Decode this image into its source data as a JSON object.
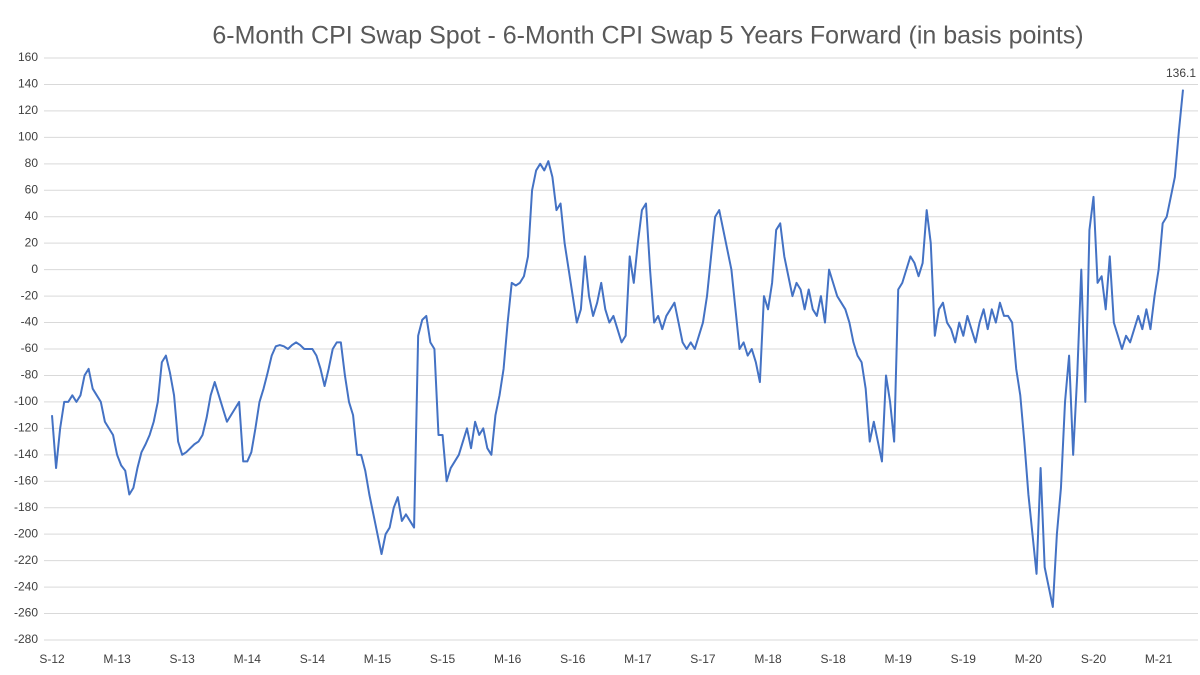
{
  "chart_data": {
    "type": "line",
    "title": "6-Month CPI Swap Spot - 6-Month CPI Swap 5 Years Forward (in basis points)",
    "color": "#4472c4",
    "grid": true,
    "ylim": [
      -280,
      160
    ],
    "yticks": [
      -280,
      -260,
      -240,
      -220,
      -200,
      -180,
      -160,
      -140,
      -120,
      -100,
      -80,
      -60,
      -40,
      -20,
      0,
      20,
      40,
      60,
      80,
      100,
      120,
      140,
      160
    ],
    "categories": [
      "S-12",
      null,
      null,
      null,
      null,
      null,
      null,
      null,
      null,
      null,
      null,
      null,
      null,
      null,
      null,
      null,
      "M-13",
      null,
      null,
      null,
      null,
      null,
      null,
      null,
      null,
      null,
      null,
      null,
      null,
      null,
      null,
      null,
      "S-13",
      null,
      null,
      null,
      null,
      null,
      null,
      null,
      null,
      null,
      null,
      null,
      null,
      null,
      null,
      null,
      "M-14",
      null,
      null,
      null,
      null,
      null,
      null,
      null,
      null,
      null,
      null,
      null,
      null,
      null,
      null,
      null,
      "S-14",
      null,
      null,
      null,
      null,
      null,
      null,
      null,
      null,
      null,
      null,
      null,
      null,
      null,
      null,
      null,
      "M-15",
      null,
      null,
      null,
      null,
      null,
      null,
      null,
      null,
      null,
      null,
      null,
      null,
      null,
      null,
      null,
      "S-15",
      null,
      null,
      null,
      null,
      null,
      null,
      null,
      null,
      null,
      null,
      null,
      null,
      null,
      null,
      null,
      "M-16",
      null,
      null,
      null,
      null,
      null,
      null,
      null,
      null,
      null,
      null,
      null,
      null,
      null,
      null,
      null,
      "S-16",
      null,
      null,
      null,
      null,
      null,
      null,
      null,
      null,
      null,
      null,
      null,
      null,
      null,
      null,
      null,
      "M-17",
      null,
      null,
      null,
      null,
      null,
      null,
      null,
      null,
      null,
      null,
      null,
      null,
      null,
      null,
      null,
      "S-17",
      null,
      null,
      null,
      null,
      null,
      null,
      null,
      null,
      null,
      null,
      null,
      null,
      null,
      null,
      null,
      "M-18",
      null,
      null,
      null,
      null,
      null,
      null,
      null,
      null,
      null,
      null,
      null,
      null,
      null,
      null,
      null,
      "S-18",
      null,
      null,
      null,
      null,
      null,
      null,
      null,
      null,
      null,
      null,
      null,
      null,
      null,
      null,
      null,
      "M-19",
      null,
      null,
      null,
      null,
      null,
      null,
      null,
      null,
      null,
      null,
      null,
      null,
      null,
      null,
      null,
      "S-19",
      null,
      null,
      null,
      null,
      null,
      null,
      null,
      null,
      null,
      null,
      null,
      null,
      null,
      null,
      null,
      "M-20",
      null,
      null,
      null,
      null,
      null,
      null,
      null,
      null,
      null,
      null,
      null,
      null,
      null,
      null,
      null,
      "S-20",
      null,
      null,
      null,
      null,
      null,
      null,
      null,
      null,
      null,
      null,
      null,
      null,
      null,
      null,
      null,
      "M-21",
      null,
      null,
      null,
      null,
      null,
      null
    ],
    "values": [
      -110,
      -150,
      -120,
      -100,
      -100,
      -95,
      -100,
      -95,
      -80,
      -75,
      -90,
      -95,
      -100,
      -115,
      -120,
      -125,
      -140,
      -148,
      -152,
      -170,
      -165,
      -150,
      -138,
      -132,
      -125,
      -115,
      -100,
      -70,
      -65,
      -78,
      -95,
      -130,
      -140,
      -138,
      -135,
      -132,
      -130,
      -125,
      -112,
      -95,
      -85,
      -95,
      -105,
      -115,
      -110,
      -105,
      -100,
      -145,
      -145,
      -138,
      -120,
      -100,
      -90,
      -78,
      -65,
      -58,
      -57,
      -58,
      -60,
      -57,
      -55,
      -57,
      -60,
      -60,
      -60,
      -65,
      -75,
      -88,
      -75,
      -60,
      -55,
      -55,
      -80,
      -100,
      -110,
      -140,
      -140,
      -152,
      -170,
      -185,
      -200,
      -215,
      -200,
      -195,
      -180,
      -172,
      -190,
      -185,
      -190,
      -195,
      -50,
      -38,
      -35,
      -55,
      -60,
      -125,
      -125,
      -160,
      -150,
      -145,
      -140,
      -130,
      -120,
      -135,
      -115,
      -125,
      -120,
      -135,
      -140,
      -110,
      -95,
      -75,
      -40,
      -10,
      -12,
      -10,
      -5,
      10,
      60,
      75,
      80,
      75,
      82,
      70,
      45,
      50,
      20,
      0,
      -20,
      -40,
      -30,
      10,
      -20,
      -35,
      -25,
      -10,
      -30,
      -40,
      -35,
      -45,
      -55,
      -50,
      10,
      -10,
      20,
      45,
      50,
      0,
      -40,
      -35,
      -45,
      -35,
      -30,
      -25,
      -40,
      -55,
      -60,
      -55,
      -60,
      -50,
      -40,
      -20,
      10,
      40,
      45,
      30,
      15,
      0,
      -30,
      -60,
      -55,
      -65,
      -60,
      -70,
      -85,
      -20,
      -30,
      -10,
      30,
      35,
      10,
      -5,
      -20,
      -10,
      -15,
      -30,
      -15,
      -30,
      -35,
      -20,
      -40,
      0,
      -10,
      -20,
      -25,
      -30,
      -40,
      -55,
      -65,
      -70,
      -90,
      -130,
      -115,
      -130,
      -145,
      -80,
      -100,
      -130,
      -15,
      -10,
      0,
      10,
      5,
      -5,
      5,
      45,
      20,
      -50,
      -30,
      -25,
      -40,
      -45,
      -55,
      -40,
      -50,
      -35,
      -45,
      -55,
      -40,
      -30,
      -45,
      -30,
      -40,
      -25,
      -35,
      -35,
      -40,
      -75,
      -95,
      -130,
      -170,
      -200,
      -230,
      -150,
      -225,
      -240,
      -255,
      -200,
      -165,
      -100,
      -65,
      -140,
      -80,
      0,
      -100,
      30,
      55,
      -10,
      -5,
      -30,
      10,
      -40,
      -50,
      -60,
      -50,
      -55,
      -45,
      -35,
      -45,
      -30,
      -45,
      -20,
      0,
      35,
      40,
      55,
      70,
      105,
      136.1
    ]
  }
}
